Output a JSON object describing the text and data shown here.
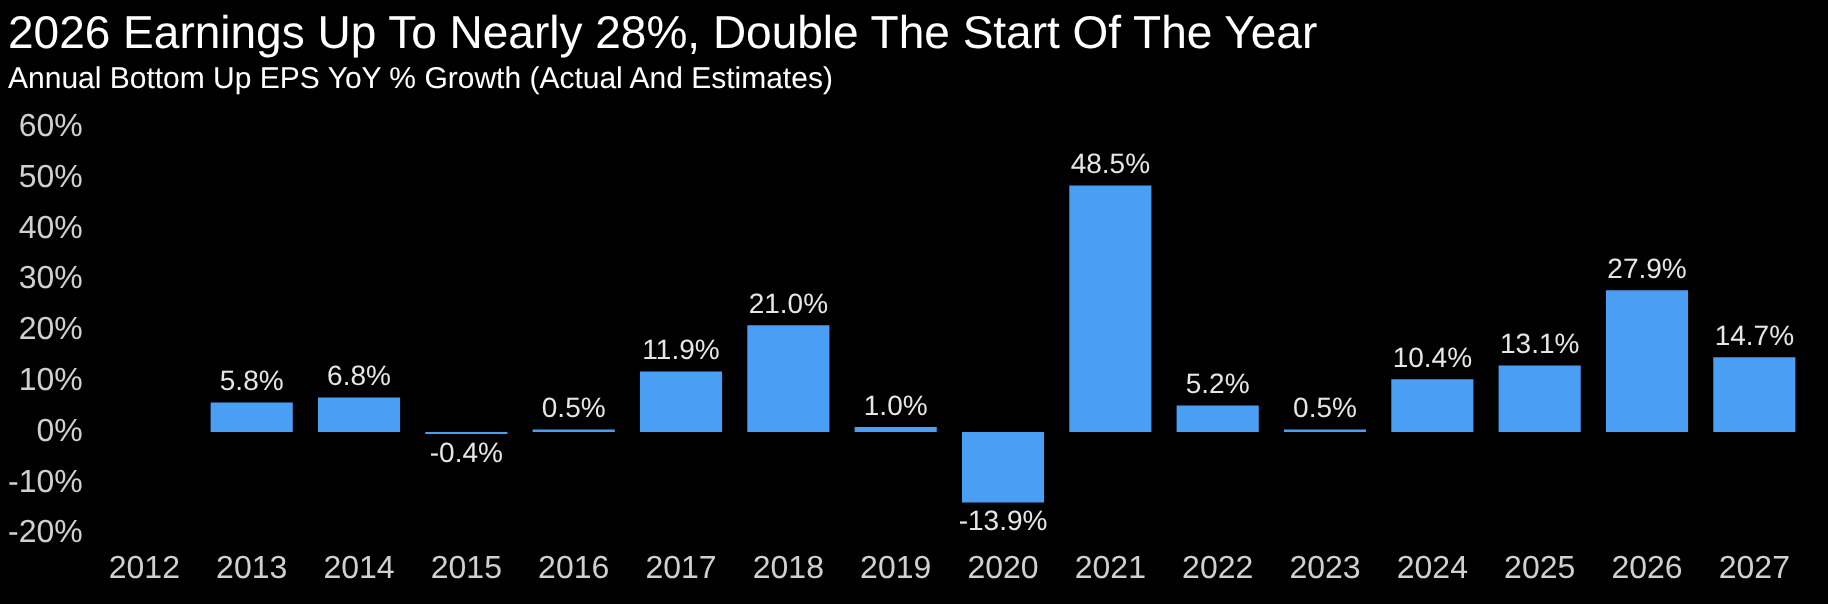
{
  "chart_data": {
    "type": "bar",
    "title": "2026 Earnings Up To Nearly 28%, Double The Start Of The Year",
    "subtitle": "Annual Bottom Up EPS YoY % Growth (Actual And Estimates)",
    "categories": [
      "2012",
      "2013",
      "2014",
      "2015",
      "2016",
      "2017",
      "2018",
      "2019",
      "2020",
      "2021",
      "2022",
      "2023",
      "2024",
      "2025",
      "2026",
      "2027"
    ],
    "values": [
      null,
      5.8,
      6.8,
      -0.4,
      0.5,
      11.9,
      21.0,
      1.0,
      -13.9,
      48.5,
      5.2,
      0.5,
      10.4,
      13.1,
      27.9,
      14.7
    ],
    "value_labels": [
      null,
      "5.8%",
      "6.8%",
      "-0.4%",
      "0.5%",
      "11.9%",
      "21.0%",
      "1.0%",
      "-13.9%",
      "48.5%",
      "5.2%",
      "0.5%",
      "10.4%",
      "13.1%",
      "27.9%",
      "14.7%"
    ],
    "color": "#4a9ff5",
    "ylim": [
      -20,
      60
    ],
    "yticks": [
      {
        "value": -20,
        "label": "-20%"
      },
      {
        "value": -10,
        "label": "-10%"
      },
      {
        "value": 0,
        "label": "0%"
      },
      {
        "value": 10,
        "label": "10%"
      },
      {
        "value": 20,
        "label": "20%"
      },
      {
        "value": 30,
        "label": "30%"
      },
      {
        "value": 40,
        "label": "40%"
      },
      {
        "value": 50,
        "label": "50%"
      },
      {
        "value": 60,
        "label": "60%"
      }
    ]
  }
}
